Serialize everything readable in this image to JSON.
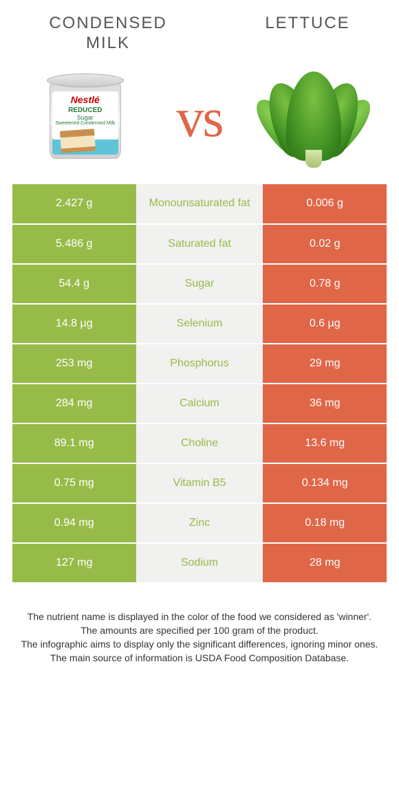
{
  "foods": {
    "left": {
      "title": "CONDENSED\nMILK",
      "color": "#97bb48",
      "brand": "Nestlé",
      "sublabel1": "REDUCED",
      "sublabel2": "Sugar",
      "sublabel3": "Sweetened Condensed Milk"
    },
    "right": {
      "title": "LETTUCE",
      "color": "#e06648"
    }
  },
  "vs": "vs",
  "table_bg_mid": "#f1f1f0",
  "rows": [
    {
      "nutrient": "Monounsaturated fat",
      "left": "2.427 g",
      "right": "0.006 g",
      "winner": "left"
    },
    {
      "nutrient": "Saturated fat",
      "left": "5.486 g",
      "right": "0.02 g",
      "winner": "left"
    },
    {
      "nutrient": "Sugar",
      "left": "54.4 g",
      "right": "0.78 g",
      "winner": "left"
    },
    {
      "nutrient": "Selenium",
      "left": "14.8 µg",
      "right": "0.6 µg",
      "winner": "left"
    },
    {
      "nutrient": "Phosphorus",
      "left": "253 mg",
      "right": "29 mg",
      "winner": "left"
    },
    {
      "nutrient": "Calcium",
      "left": "284 mg",
      "right": "36 mg",
      "winner": "left"
    },
    {
      "nutrient": "Choline",
      "left": "89.1 mg",
      "right": "13.6 mg",
      "winner": "left"
    },
    {
      "nutrient": "Vitamin B5",
      "left": "0.75 mg",
      "right": "0.134 mg",
      "winner": "left"
    },
    {
      "nutrient": "Zinc",
      "left": "0.94 mg",
      "right": "0.18 mg",
      "winner": "left"
    },
    {
      "nutrient": "Sodium",
      "left": "127 mg",
      "right": "28 mg",
      "winner": "left"
    }
  ],
  "footer": [
    "The nutrient name is displayed in the color of the food we considered as 'winner'.",
    "The amounts are specified per 100 gram of the product.",
    "The infographic aims to display only the significant differences, ignoring minor ones.",
    "The main source of information is USDA Food Composition Database."
  ]
}
